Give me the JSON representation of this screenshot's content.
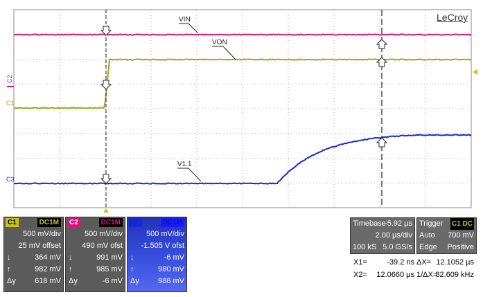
{
  "brand": "LeCroy",
  "traces": {
    "vin": {
      "label": "VIN",
      "color": "#e0127a"
    },
    "von": {
      "label": "VON",
      "color": "#a6a318"
    },
    "v11": {
      "label": "V1.1",
      "color": "#1428d6"
    }
  },
  "channel_markers": {
    "c1": "C1",
    "c2": "C2",
    "c3": "C3"
  },
  "channels": [
    {
      "tag": "C1",
      "coupling": "DC1M",
      "color": "#c8c21b",
      "scale": "500 mV/div",
      "offset": "25 mV offset",
      "down": "364 mV",
      "up": "982 mV",
      "delta": "618 mV"
    },
    {
      "tag": "C2",
      "coupling": "DC1M",
      "color": "#e0127a",
      "scale": "500 mV/div",
      "offset": "490 mV ofst",
      "down": "991 mV",
      "up": "985 mV",
      "delta": "-6 mV"
    },
    {
      "tag": "C3",
      "coupling": "DC1M",
      "color": "#1428d6",
      "scale": "500 mV/div",
      "offset": "-1.505 V ofst",
      "down": "-6 mV",
      "up": "980 mV",
      "delta": "986 mV"
    }
  ],
  "timebase": {
    "label": "Timebase",
    "value": "-5.92 µs",
    "per_div": "2.00 µs/div",
    "samples": "100 kS",
    "rate": "5.0 GS/s"
  },
  "trigger": {
    "label": "Trigger",
    "source": "C1",
    "coupling": "DC",
    "mode": "Auto",
    "level": "700 mV",
    "type": "Edge",
    "slope": "Positive"
  },
  "cursors": {
    "x1_label": "X1=",
    "x1": "-39.2 ns",
    "x2_label": "X2=",
    "x2": "12.0660 µs",
    "dx_label": "ΔX=",
    "dx": "12.1052 µs",
    "inv_label": "1/ΔX=",
    "inv": "82.609 kHz"
  }
}
